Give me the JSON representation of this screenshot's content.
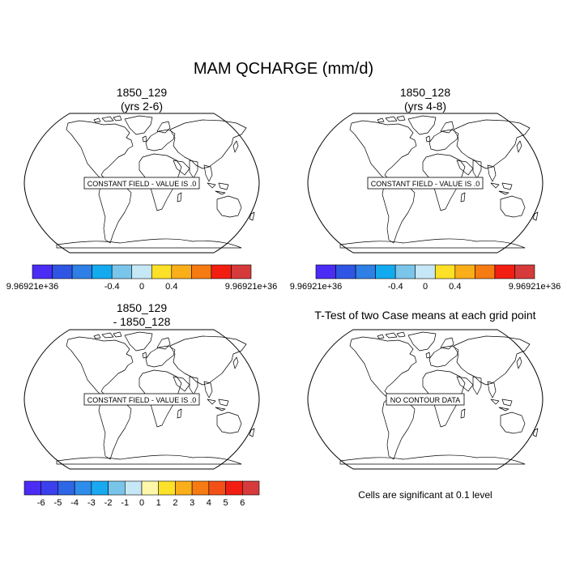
{
  "title": "MAM QCHARGE (mm/d)",
  "panels": [
    {
      "title1": "1850_129",
      "title2": "(yrs 2-6)",
      "map_message": "CONSTANT FIELD - VALUE IS .0"
    },
    {
      "title1": "1850_128",
      "title2": "(yrs 4-8)",
      "map_message": "CONSTANT FIELD - VALUE IS .0"
    },
    {
      "title1": "1850_129",
      "title2": "- 1850_128",
      "map_message": "CONSTANT FIELD - VALUE IS .0"
    },
    {
      "title1": "T-Test of two Case means at each grid point",
      "title2": "",
      "map_message": "NO CONTOUR DATA"
    }
  ],
  "colorbar_top": {
    "colors": [
      "#4a2cf5",
      "#2f55e4",
      "#2e7fe6",
      "#13aaf0",
      "#7ac5ea",
      "#c6e7f5",
      "#fde028",
      "#f9ae1a",
      "#f67b12",
      "#f31e12",
      "#d63a3a"
    ],
    "labels": [
      "9.96921e+36",
      "-0.4",
      "0",
      "0.4",
      "9.96921e+36"
    ]
  },
  "colorbar_diff": {
    "colors": [
      "#4a2cf5",
      "#3a40ee",
      "#2e66e6",
      "#2e8cea",
      "#19a9f0",
      "#79c5ea",
      "#c6e7f5",
      "#fef7a9",
      "#fde028",
      "#f9ae1a",
      "#f67b12",
      "#f35018",
      "#f31e12",
      "#d63a3a"
    ],
    "labels": [
      "-6",
      "-5",
      "-4",
      "-3",
      "-2",
      "-1",
      "0",
      "1",
      "2",
      "3",
      "4",
      "5",
      "6"
    ]
  },
  "significance_note": "Cells are significant at 0.1 level"
}
